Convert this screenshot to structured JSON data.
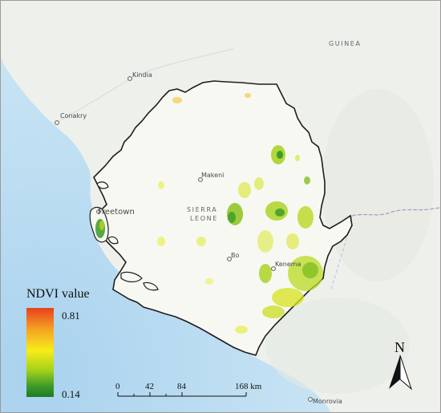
{
  "places": {
    "kindia": "Kindia",
    "conakry": "Conakry",
    "makeni": "Makeni",
    "freetown": "Freetown",
    "bo": "Bo",
    "kenema": "Kenema",
    "monrovia": "Monrovia"
  },
  "countries": {
    "guinea": "GUINEA",
    "sierra_leone_line1": "SIERRA",
    "sierra_leone_line2": "LEONE"
  },
  "legend": {
    "title": "NDVI value",
    "max_label": "0.81",
    "min_label": "0.14",
    "max_value": 0.81,
    "min_value": 0.14,
    "colors": [
      "#e8401c",
      "#f5a623",
      "#f7ec1a",
      "#a6d11a",
      "#3c9a2a",
      "#1f7a27"
    ]
  },
  "scale_bar": {
    "ticks": [
      "0",
      "42",
      "84",
      "168 km"
    ]
  },
  "north_arrow": {
    "label": "N"
  },
  "colors": {
    "ocean": "#b9dbf0",
    "land": "#eef0ec",
    "sierra_leone_fill": "#f7f8f2",
    "border": "#222222",
    "intl_border": "#b59ac6"
  }
}
